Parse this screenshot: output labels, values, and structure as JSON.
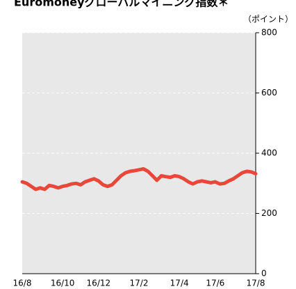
{
  "chart_data": {
    "type": "line",
    "title": "Euromoneyグローバルマイニング指数＊",
    "y_axis_label": "（ポイント）",
    "categories": [
      "16/8",
      null,
      null,
      null,
      null,
      null,
      null,
      null,
      null,
      "16/10",
      null,
      null,
      null,
      null,
      null,
      null,
      null,
      "16/12",
      null,
      null,
      null,
      null,
      null,
      null,
      null,
      null,
      "17/2",
      null,
      null,
      null,
      null,
      null,
      null,
      null,
      null,
      "17/4",
      null,
      null,
      null,
      null,
      null,
      null,
      null,
      "17/6",
      null,
      null,
      null,
      null,
      null,
      null,
      null,
      null,
      "17/8"
    ],
    "series": [
      {
        "name": "Euromoneyグローバルマイニング指数",
        "color": "#e8473a",
        "values": [
          305,
          300,
          290,
          280,
          285,
          280,
          293,
          290,
          285,
          290,
          293,
          298,
          300,
          295,
          305,
          310,
          315,
          308,
          295,
          290,
          295,
          310,
          325,
          335,
          340,
          342,
          345,
          348,
          340,
          325,
          310,
          325,
          322,
          320,
          325,
          322,
          315,
          305,
          298,
          305,
          308,
          305,
          302,
          305,
          298,
          300,
          308,
          315,
          325,
          335,
          340,
          338,
          332
        ]
      }
    ],
    "ylim": [
      0,
      800
    ],
    "yticks": [
      0,
      200,
      400,
      600,
      800
    ],
    "grid": true
  }
}
